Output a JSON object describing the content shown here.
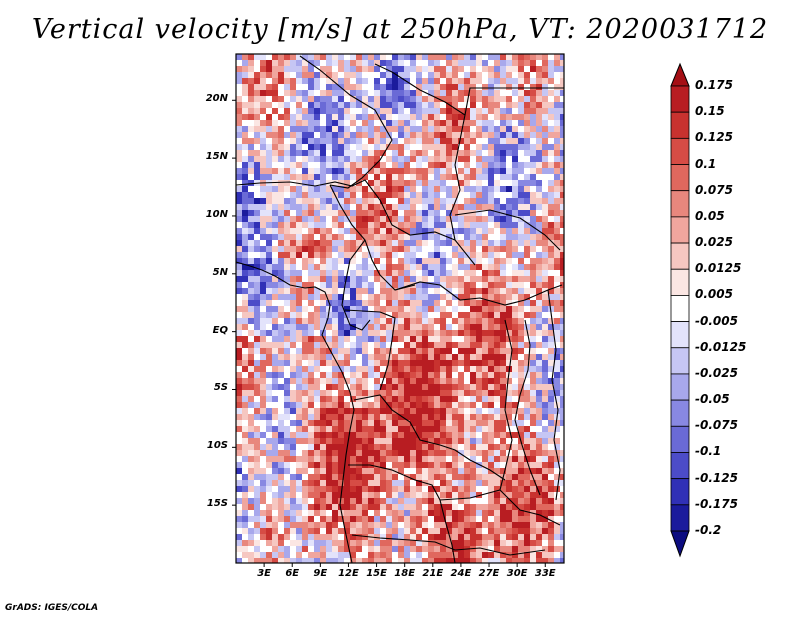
{
  "title": "Vertical velocity [m/s] at 250hPa, VT: 2020031712",
  "credit": "GrADS: IGES/COLA",
  "map": {
    "lat_range": [
      -20,
      24
    ],
    "lon_range": [
      0,
      35
    ],
    "lat_ticks": [
      "20N",
      "15N",
      "10N",
      "5N",
      "EQ",
      "5S",
      "10S",
      "15S"
    ],
    "lon_ticks": [
      "3E",
      "6E",
      "9E",
      "12E",
      "15E",
      "18E",
      "21E",
      "24E",
      "27E",
      "30E",
      "33E"
    ]
  },
  "colorbar": {
    "levels": [
      "0.175",
      "0.15",
      "0.125",
      "0.1",
      "0.075",
      "0.05",
      "0.025",
      "0.0125",
      "0.005",
      "-0.005",
      "-0.0125",
      "-0.025",
      "-0.05",
      "-0.075",
      "-0.1",
      "-0.125",
      "-0.175",
      "-0.2"
    ],
    "colors": [
      "#a50f15",
      "#b81d22",
      "#c8322f",
      "#d64c45",
      "#e0685e",
      "#e8877d",
      "#f0a69e",
      "#f6c7c1",
      "#fbe6e3",
      "#ffffff",
      "#e3e3fb",
      "#c6c6f4",
      "#a8a8ec",
      "#8888e2",
      "#6a6ad6",
      "#4c4cc8",
      "#3030b6",
      "#1b1b9c",
      "#0c0c80"
    ]
  }
}
